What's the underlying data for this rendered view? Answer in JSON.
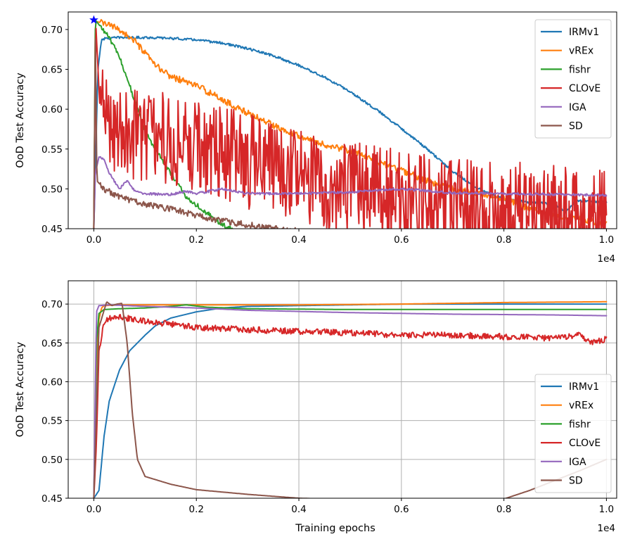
{
  "chart_data": [
    {
      "type": "line",
      "title": "",
      "xlabel": "",
      "ylabel": "OoD Test Accuracy",
      "x_offset_text": "1e4",
      "xlim": [
        -0.05,
        1.02
      ],
      "ylim": [
        0.45,
        0.722
      ],
      "grid": false,
      "legend_position": "top-right",
      "x_ticks": [
        0.0,
        0.2,
        0.4,
        0.6,
        0.8,
        1.0
      ],
      "x_tick_labels": [
        "0.0",
        "0.2",
        "0.4",
        "0.6",
        "0.8",
        "1.0"
      ],
      "y_ticks": [
        0.45,
        0.5,
        0.55,
        0.6,
        0.65,
        0.7
      ],
      "y_tick_labels": [
        "0.45",
        "0.50",
        "0.55",
        "0.60",
        "0.65",
        "0.70"
      ],
      "marker": {
        "x": 0.0,
        "y": 0.712,
        "symbol": "star",
        "color": "#0000ff"
      },
      "series": [
        {
          "name": "IRMv1",
          "color": "#1f77b4",
          "noise": 0.0015,
          "points": [
            [
              0.0,
              0.45
            ],
            [
              0.008,
              0.65
            ],
            [
              0.015,
              0.688
            ],
            [
              0.05,
              0.69
            ],
            [
              0.1,
              0.69
            ],
            [
              0.15,
              0.689
            ],
            [
              0.2,
              0.687
            ],
            [
              0.25,
              0.683
            ],
            [
              0.3,
              0.676
            ],
            [
              0.35,
              0.667
            ],
            [
              0.4,
              0.655
            ],
            [
              0.45,
              0.64
            ],
            [
              0.5,
              0.622
            ],
            [
              0.55,
              0.6
            ],
            [
              0.6,
              0.576
            ],
            [
              0.65,
              0.55
            ],
            [
              0.7,
              0.522
            ],
            [
              0.75,
              0.5
            ],
            [
              0.8,
              0.487
            ],
            [
              0.85,
              0.483
            ],
            [
              0.9,
              0.481
            ],
            [
              0.92,
              0.47
            ],
            [
              0.94,
              0.485
            ],
            [
              1.0,
              0.484
            ]
          ]
        },
        {
          "name": "vREx",
          "color": "#ff7f0e",
          "noise": 0.004,
          "points": [
            [
              0.0,
              0.45
            ],
            [
              0.003,
              0.71
            ],
            [
              0.02,
              0.708
            ],
            [
              0.05,
              0.7
            ],
            [
              0.08,
              0.685
            ],
            [
              0.1,
              0.67
            ],
            [
              0.12,
              0.655
            ],
            [
              0.15,
              0.641
            ],
            [
              0.2,
              0.63
            ],
            [
              0.25,
              0.612
            ],
            [
              0.3,
              0.595
            ],
            [
              0.35,
              0.58
            ],
            [
              0.4,
              0.567
            ],
            [
              0.45,
              0.555
            ],
            [
              0.5,
              0.548
            ],
            [
              0.55,
              0.535
            ],
            [
              0.6,
              0.523
            ],
            [
              0.65,
              0.51
            ],
            [
              0.7,
              0.5
            ],
            [
              0.75,
              0.494
            ],
            [
              0.8,
              0.488
            ],
            [
              0.85,
              0.475
            ],
            [
              0.9,
              0.465
            ],
            [
              0.95,
              0.462
            ],
            [
              1.0,
              0.455
            ]
          ]
        },
        {
          "name": "fishr",
          "color": "#2ca02c",
          "noise": 0.003,
          "points": [
            [
              0.0,
              0.45
            ],
            [
              0.003,
              0.712
            ],
            [
              0.01,
              0.706
            ],
            [
              0.03,
              0.69
            ],
            [
              0.05,
              0.665
            ],
            [
              0.07,
              0.63
            ],
            [
              0.09,
              0.59
            ],
            [
              0.11,
              0.56
            ],
            [
              0.13,
              0.54
            ],
            [
              0.15,
              0.52
            ],
            [
              0.18,
              0.49
            ],
            [
              0.2,
              0.48
            ],
            [
              0.23,
              0.465
            ],
            [
              0.25,
              0.455
            ],
            [
              0.27,
              0.449
            ]
          ]
        },
        {
          "name": "CLOvE",
          "color": "#d62728",
          "noise": 0.06,
          "points": [
            [
              0.0,
              0.45
            ],
            [
              0.004,
              0.705
            ],
            [
              0.012,
              0.6
            ],
            [
              0.05,
              0.575
            ],
            [
              0.1,
              0.57
            ],
            [
              0.2,
              0.555
            ],
            [
              0.3,
              0.535
            ],
            [
              0.4,
              0.515
            ],
            [
              0.5,
              0.5
            ],
            [
              0.6,
              0.49
            ],
            [
              0.7,
              0.482
            ],
            [
              0.8,
              0.475
            ],
            [
              0.9,
              0.47
            ],
            [
              1.0,
              0.47
            ]
          ]
        },
        {
          "name": "IGA",
          "color": "#9467bd",
          "noise": 0.0015,
          "points": [
            [
              0.0,
              0.45
            ],
            [
              0.003,
              0.52
            ],
            [
              0.01,
              0.54
            ],
            [
              0.02,
              0.538
            ],
            [
              0.03,
              0.52
            ],
            [
              0.05,
              0.5
            ],
            [
              0.065,
              0.51
            ],
            [
              0.08,
              0.497
            ],
            [
              0.1,
              0.494
            ],
            [
              0.15,
              0.493
            ],
            [
              0.18,
              0.497
            ],
            [
              0.2,
              0.494
            ],
            [
              0.25,
              0.5
            ],
            [
              0.3,
              0.494
            ],
            [
              0.4,
              0.494
            ],
            [
              0.5,
              0.496
            ],
            [
              0.6,
              0.5
            ],
            [
              0.7,
              0.495
            ],
            [
              0.8,
              0.494
            ],
            [
              0.9,
              0.493
            ],
            [
              1.0,
              0.492
            ]
          ]
        },
        {
          "name": "SD",
          "color": "#8c564b",
          "noise": 0.004,
          "points": [
            [
              0.0,
              0.45
            ],
            [
              0.003,
              0.7
            ],
            [
              0.006,
              0.51
            ],
            [
              0.02,
              0.5
            ],
            [
              0.05,
              0.49
            ],
            [
              0.1,
              0.48
            ],
            [
              0.15,
              0.475
            ],
            [
              0.2,
              0.467
            ],
            [
              0.25,
              0.46
            ],
            [
              0.3,
              0.455
            ],
            [
              0.35,
              0.45
            ],
            [
              0.4,
              0.447
            ]
          ]
        }
      ]
    },
    {
      "type": "line",
      "title": "",
      "xlabel": "Training epochs",
      "ylabel": "OoD Test Accuracy",
      "x_offset_text": "1e4",
      "xlim": [
        -0.05,
        1.02
      ],
      "ylim": [
        0.45,
        0.73
      ],
      "grid": true,
      "legend_position": "lower-right",
      "x_ticks": [
        0.0,
        0.2,
        0.4,
        0.6,
        0.8,
        1.0
      ],
      "x_tick_labels": [
        "0.0",
        "0.2",
        "0.4",
        "0.6",
        "0.8",
        "1.0"
      ],
      "y_ticks": [
        0.45,
        0.5,
        0.55,
        0.6,
        0.65,
        0.7
      ],
      "y_tick_labels": [
        "0.45",
        "0.50",
        "0.55",
        "0.60",
        "0.65",
        "0.70"
      ],
      "series": [
        {
          "name": "IRMv1",
          "color": "#1f77b4",
          "noise": 0.0,
          "points": [
            [
              0.0,
              0.45
            ],
            [
              0.01,
              0.46
            ],
            [
              0.02,
              0.53
            ],
            [
              0.03,
              0.575
            ],
            [
              0.05,
              0.615
            ],
            [
              0.07,
              0.64
            ],
            [
              0.1,
              0.66
            ],
            [
              0.12,
              0.672
            ],
            [
              0.15,
              0.682
            ],
            [
              0.2,
              0.69
            ],
            [
              0.25,
              0.695
            ],
            [
              0.3,
              0.697
            ],
            [
              0.4,
              0.698
            ],
            [
              0.5,
              0.699
            ],
            [
              0.6,
              0.7
            ],
            [
              0.7,
              0.7
            ],
            [
              0.8,
              0.7
            ],
            [
              1.0,
              0.7
            ]
          ]
        },
        {
          "name": "vREx",
          "color": "#ff7f0e",
          "noise": 0.0,
          "points": [
            [
              0.0,
              0.45
            ],
            [
              0.005,
              0.62
            ],
            [
              0.01,
              0.68
            ],
            [
              0.015,
              0.695
            ],
            [
              0.02,
              0.698
            ],
            [
              0.05,
              0.699
            ],
            [
              0.2,
              0.699
            ],
            [
              0.4,
              0.699
            ],
            [
              0.6,
              0.7
            ],
            [
              0.7,
              0.701
            ],
            [
              0.8,
              0.702
            ],
            [
              1.0,
              0.703
            ]
          ]
        },
        {
          "name": "fishr",
          "color": "#2ca02c",
          "noise": 0.0,
          "points": [
            [
              0.0,
              0.45
            ],
            [
              0.005,
              0.65
            ],
            [
              0.01,
              0.688
            ],
            [
              0.02,
              0.693
            ],
            [
              0.05,
              0.694
            ],
            [
              0.1,
              0.695
            ],
            [
              0.15,
              0.697
            ],
            [
              0.18,
              0.699
            ],
            [
              0.22,
              0.696
            ],
            [
              0.3,
              0.694
            ],
            [
              0.5,
              0.693
            ],
            [
              0.7,
              0.693
            ],
            [
              1.0,
              0.693
            ]
          ]
        },
        {
          "name": "CLOvE",
          "color": "#d62728",
          "noise": 0.004,
          "points": [
            [
              0.0,
              0.45
            ],
            [
              0.005,
              0.52
            ],
            [
              0.01,
              0.64
            ],
            [
              0.02,
              0.675
            ],
            [
              0.03,
              0.682
            ],
            [
              0.05,
              0.683
            ],
            [
              0.1,
              0.678
            ],
            [
              0.2,
              0.67
            ],
            [
              0.3,
              0.667
            ],
            [
              0.4,
              0.665
            ],
            [
              0.5,
              0.663
            ],
            [
              0.6,
              0.66
            ],
            [
              0.7,
              0.66
            ],
            [
              0.8,
              0.658
            ],
            [
              0.9,
              0.656
            ],
            [
              0.95,
              0.66
            ],
            [
              0.97,
              0.65
            ],
            [
              1.0,
              0.655
            ]
          ]
        },
        {
          "name": "IGA",
          "color": "#9467bd",
          "noise": 0.0,
          "points": [
            [
              0.0,
              0.45
            ],
            [
              0.005,
              0.69
            ],
            [
              0.01,
              0.698
            ],
            [
              0.03,
              0.699
            ],
            [
              0.1,
              0.697
            ],
            [
              0.2,
              0.695
            ],
            [
              0.3,
              0.692
            ],
            [
              0.5,
              0.689
            ],
            [
              0.7,
              0.687
            ],
            [
              0.9,
              0.686
            ],
            [
              1.0,
              0.685
            ]
          ]
        },
        {
          "name": "SD",
          "color": "#8c564b",
          "noise": 0.0,
          "points": [
            [
              0.0,
              0.45
            ],
            [
              0.01,
              0.67
            ],
            [
              0.025,
              0.703
            ],
            [
              0.035,
              0.698
            ],
            [
              0.045,
              0.7
            ],
            [
              0.055,
              0.701
            ],
            [
              0.065,
              0.65
            ],
            [
              0.075,
              0.56
            ],
            [
              0.085,
              0.5
            ],
            [
              0.1,
              0.478
            ],
            [
              0.15,
              0.468
            ],
            [
              0.2,
              0.461
            ],
            [
              0.3,
              0.455
            ],
            [
              0.4,
              0.45
            ],
            [
              0.45,
              0.449
            ],
            [
              0.8,
              0.449
            ],
            [
              0.85,
              0.46
            ],
            [
              0.9,
              0.473
            ],
            [
              0.95,
              0.486
            ],
            [
              1.0,
              0.5
            ]
          ]
        }
      ]
    }
  ]
}
